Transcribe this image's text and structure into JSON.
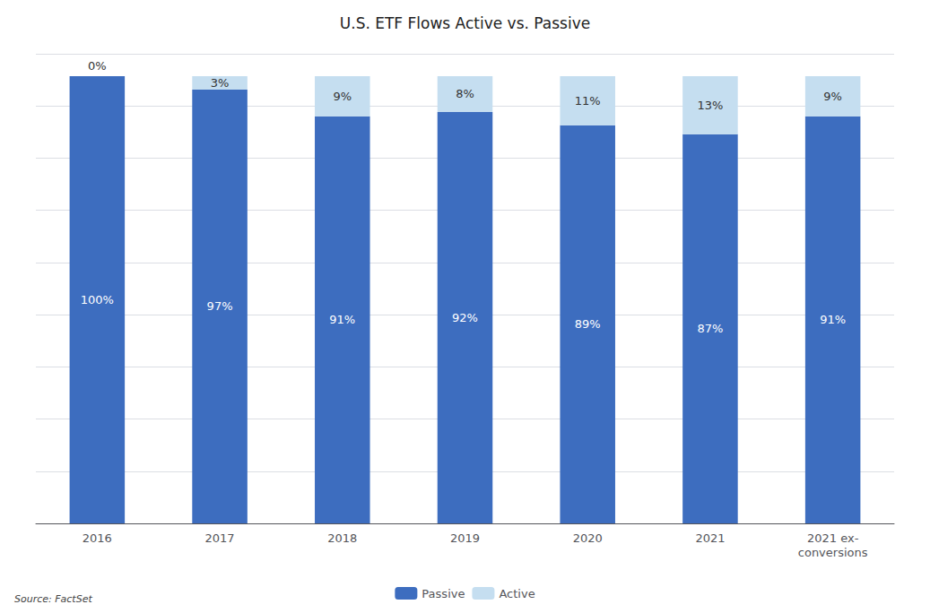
{
  "chart_data": {
    "type": "bar",
    "title": "U.S. ETF Flows Active vs. Passive",
    "categories": [
      "2016",
      "2017",
      "2018",
      "2019",
      "2020",
      "2021",
      "2021 ex-\nconversions"
    ],
    "series": [
      {
        "name": "Passive",
        "color": "#3D6DBF",
        "values": [
          100,
          97,
          91,
          92,
          89,
          87,
          91
        ],
        "value_labels": [
          "100%",
          "97%",
          "91%",
          "92%",
          "89%",
          "87%",
          "91%"
        ]
      },
      {
        "name": "Active",
        "color": "#C5DEF0",
        "values": [
          0,
          3,
          9,
          8,
          11,
          13,
          9
        ],
        "value_labels": [
          "0%",
          "3%",
          "9%",
          "8%",
          "11%",
          "13%",
          "9%"
        ]
      }
    ],
    "stacked": true,
    "data_labels": true,
    "ylim": [
      0,
      105
    ],
    "yticks": [
      0,
      11.666666666666666,
      23.333333333333332,
      35,
      46.666666666666664,
      58.33333333333333,
      70,
      81.66666666666666,
      93.33333333333333,
      105
    ],
    "tick_labels": "x",
    "grid": true,
    "legend": "bottom",
    "annotations": [
      "Source: FactSet"
    ]
  }
}
